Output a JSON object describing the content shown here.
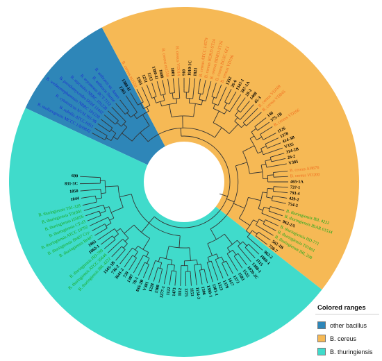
{
  "colors": {
    "other_bacillus": "#2e86b8",
    "b_cereus": "#f6b955",
    "b_thuringiensis": "#40dbcb",
    "label_other": "#1c2fd0",
    "label_cereus": "#f06b1d",
    "label_thuringiensis": "#16a81a",
    "label_isolate": "#000000",
    "branch": "#333333"
  },
  "legend": {
    "title": "Colored ranges",
    "items": [
      {
        "key": "other_bacillus",
        "label": "other bacillus"
      },
      {
        "key": "b_cereus",
        "label": "B. cereus"
      },
      {
        "key": "b_thuringiensis",
        "label": "B. thuringiensis"
      }
    ]
  },
  "ranges": [
    {
      "group": "other_bacillus",
      "start": -155,
      "end": -118
    },
    {
      "group": "b_cereus",
      "start": -118,
      "end": 38
    },
    {
      "group": "b_thuringiensis",
      "start": 38,
      "end": 205
    }
  ],
  "leaves": [
    {
      "a": -152,
      "t": "B. mollaregensis MCCC 1A00842",
      "g": "o"
    },
    {
      "a": -149,
      "t": "B. subtilis ATCC 6051",
      "g": "o"
    },
    {
      "a": -146,
      "t": "B. cytotoxicus NVH 391-98",
      "g": "o"
    },
    {
      "a": -143,
      "t": "B. weihenstephanensis NBRC 101238",
      "g": "o"
    },
    {
      "a": -140,
      "t": "B. pseudomycoides DSM 12442",
      "g": "o"
    },
    {
      "a": -137,
      "t": "B. mycoides NBRC 101228",
      "g": "o"
    },
    {
      "a": -134,
      "t": "B. toyonensis BCT-7112",
      "g": "o"
    },
    {
      "a": -131,
      "t": "B. anthracis Sterne",
      "g": "o"
    },
    {
      "a": -128,
      "t": "B. anthracis str. Ames",
      "g": "o"
    },
    {
      "a": -124,
      "t": "1365",
      "g": "i"
    },
    {
      "a": -121,
      "t": "1380-II",
      "g": "i"
    },
    {
      "a": -117,
      "t": "B. cereus m1550",
      "g": "c"
    },
    {
      "a": -114,
      "t": "1503",
      "g": "i"
    },
    {
      "a": -111,
      "t": "1251",
      "g": "i"
    },
    {
      "a": -108,
      "t": "1213",
      "g": "i"
    },
    {
      "a": -105,
      "t": "1380-II",
      "g": "i"
    },
    {
      "a": -102,
      "t": "1608",
      "g": "i"
    },
    {
      "a": -99,
      "t": "B. cereus m1550",
      "g": "c"
    },
    {
      "a": -96,
      "t": "1001",
      "g": "i"
    },
    {
      "a": -93,
      "t": "B. cereus VD014",
      "g": "c"
    },
    {
      "a": -90,
      "t": "910",
      "g": "i"
    },
    {
      "a": -87,
      "t": "1910-1C",
      "g": "i"
    },
    {
      "a": -84,
      "t": "1821",
      "g": "i"
    },
    {
      "a": -81,
      "t": "B. cereus ATCC 14579",
      "g": "c"
    },
    {
      "a": -78,
      "t": "B. cereus BDRD-ST24",
      "g": "c"
    },
    {
      "a": -75,
      "t": "B. cereus BDRD-ST26",
      "g": "c"
    },
    {
      "a": -72,
      "t": "B. cereus BGSC 6E1",
      "g": "c"
    },
    {
      "a": -69,
      "t": "B. cereus VD196",
      "g": "c"
    },
    {
      "a": -66,
      "t": "1352",
      "g": "i"
    },
    {
      "a": -63,
      "t": "26-6",
      "g": "i"
    },
    {
      "a": -60,
      "t": "1347-1",
      "g": "i"
    },
    {
      "a": -57,
      "t": "387-1A",
      "g": "i"
    },
    {
      "a": -54,
      "t": "28-2",
      "g": "i"
    },
    {
      "a": -51,
      "t": "1468",
      "g": "i"
    },
    {
      "a": -48,
      "t": "45-3",
      "g": "i"
    },
    {
      "a": -45,
      "t": "B. cereus VD169",
      "g": "c"
    },
    {
      "a": -42,
      "t": "B. cereus VD045",
      "g": "c"
    },
    {
      "a": -38,
      "t": "146",
      "g": "i"
    },
    {
      "a": -35,
      "t": "375-1B",
      "g": "i"
    },
    {
      "a": -32,
      "t": "B. cereus VD166",
      "g": "c"
    },
    {
      "a": -28,
      "t": "1126",
      "g": "i"
    },
    {
      "a": -25,
      "t": "1378",
      "g": "i"
    },
    {
      "a": -22,
      "t": "414-3B",
      "g": "i"
    },
    {
      "a": -19,
      "t": "V335",
      "g": "i"
    },
    {
      "a": -16,
      "t": "314-2B",
      "g": "i"
    },
    {
      "a": -13,
      "t": "26-2",
      "g": "i"
    },
    {
      "a": -10,
      "t": "V385",
      "g": "i"
    },
    {
      "a": -6,
      "t": "B. cereus AH676",
      "g": "c"
    },
    {
      "a": -3,
      "t": "B. cereus VD200",
      "g": "c"
    },
    {
      "a": 0,
      "t": "465-1A",
      "g": "i"
    },
    {
      "a": 3,
      "t": "737-1",
      "g": "i"
    },
    {
      "a": 6,
      "t": "793-4",
      "g": "i"
    },
    {
      "a": 9,
      "t": "429-2",
      "g": "i"
    },
    {
      "a": 12,
      "t": "754-5",
      "g": "i"
    },
    {
      "a": 16,
      "t": "B. thuringiensis IBL 4222",
      "g": "t"
    },
    {
      "a": 19,
      "t": "B. thuringiensis IBAR 01534",
      "g": "t"
    },
    {
      "a": 22,
      "t": "962-2A",
      "g": "i"
    },
    {
      "a": 25,
      "t": "B. thuringiensis HD-771",
      "g": "t"
    },
    {
      "a": 28,
      "t": "B. thuringiensis T01001",
      "g": "t"
    },
    {
      "a": 31,
      "t": "B. thuringiensis IBL 200",
      "g": "t"
    },
    {
      "a": 34,
      "t": "562-1B",
      "g": "i"
    },
    {
      "a": 37,
      "t": "738-7",
      "g": "i"
    },
    {
      "a": 41,
      "t": "962-2",
      "g": "i"
    },
    {
      "a": 44,
      "t": "1060-1",
      "g": "i"
    },
    {
      "a": 47,
      "t": "1115",
      "g": "i"
    },
    {
      "a": 50,
      "t": "1380-1",
      "g": "i"
    },
    {
      "a": 53,
      "t": "1020-2C",
      "g": "i"
    },
    {
      "a": 56,
      "t": "1532",
      "g": "i"
    },
    {
      "a": 59,
      "t": "1583",
      "g": "i"
    },
    {
      "a": 62,
      "t": "1373",
      "g": "i"
    },
    {
      "a": 65,
      "t": "1617",
      "g": "i"
    },
    {
      "a": 68,
      "t": "1379",
      "g": "i"
    },
    {
      "a": 71,
      "t": "1323",
      "g": "i"
    },
    {
      "a": 74,
      "t": "1381-1",
      "g": "i"
    },
    {
      "a": 77,
      "t": "1380-1",
      "g": "i"
    },
    {
      "a": 80,
      "t": "1306",
      "g": "i"
    },
    {
      "a": 83,
      "t": "1154-3",
      "g": "i"
    },
    {
      "a": 86,
      "t": "1153",
      "g": "i"
    },
    {
      "a": 89,
      "t": "1375",
      "g": "i"
    },
    {
      "a": 92,
      "t": "1112",
      "g": "i"
    },
    {
      "a": 95,
      "t": "1473",
      "g": "i"
    },
    {
      "a": 98,
      "t": "1122",
      "g": "i"
    },
    {
      "a": 101,
      "t": "1277-1",
      "g": "i"
    },
    {
      "a": 104,
      "t": "1308",
      "g": "i"
    },
    {
      "a": 107,
      "t": "1228",
      "g": "i"
    },
    {
      "a": 110,
      "t": "V301",
      "g": "i"
    },
    {
      "a": 113,
      "t": "816-2B",
      "g": "i"
    },
    {
      "a": 116,
      "t": "78-1",
      "g": "i"
    },
    {
      "a": 119,
      "t": "1387",
      "g": "i"
    },
    {
      "a": 122,
      "t": "720",
      "g": "i"
    },
    {
      "a": 125,
      "t": "3641-2",
      "g": "i"
    },
    {
      "a": 128,
      "t": "736-2",
      "g": "i"
    },
    {
      "a": 131,
      "t": "1545-1B",
      "g": "i"
    },
    {
      "a": 134,
      "t": "B. thuringiensis IBL 4222",
      "g": "t"
    },
    {
      "a": 137,
      "t": "B. thuringiensis ATCC 35646",
      "g": "t"
    },
    {
      "a": 140,
      "t": "B. thuringiensis HD-789",
      "g": "t"
    },
    {
      "a": 143,
      "t": "1063-1",
      "g": "i"
    },
    {
      "a": 146,
      "t": "1065",
      "g": "i"
    },
    {
      "a": 149,
      "t": "B. thuringiensis Bt407",
      "g": "t"
    },
    {
      "a": 152,
      "t": "B. thuringiensis Bt407 Cry-",
      "g": "t"
    },
    {
      "a": 155,
      "t": "B. thuringiensis ATCC 10792",
      "g": "t"
    },
    {
      "a": 158,
      "t": "B. thuringiensis CT-43",
      "g": "t"
    },
    {
      "a": 161,
      "t": "B. thuringiensis IS5056",
      "g": "t"
    },
    {
      "a": 164,
      "t": "B. thuringiensis T01001",
      "g": "t"
    },
    {
      "a": 167,
      "t": "B. thuringiensis T01-328",
      "g": "t"
    },
    {
      "a": 171,
      "t": "1044",
      "g": "i"
    },
    {
      "a": 175,
      "t": "1050",
      "g": "i"
    },
    {
      "a": 179,
      "t": "831-3C",
      "g": "i"
    },
    {
      "a": 183,
      "t": "690",
      "g": "i"
    }
  ]
}
